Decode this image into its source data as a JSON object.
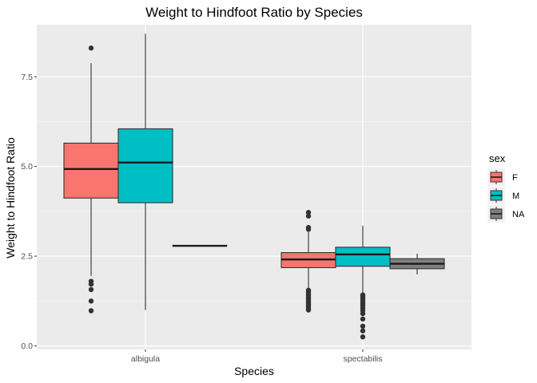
{
  "chart_data": {
    "type": "boxplot",
    "title": "Weight to Hindfoot Ratio by Species",
    "xlabel": "Species",
    "ylabel": "Weight to Hindfoot Ratio",
    "ylim": [
      -0.1,
      8.95
    ],
    "yticks": [
      0.0,
      2.5,
      5.0,
      7.5
    ],
    "ytick_labels": [
      "0.0",
      "2.5",
      "5.0",
      "7.5"
    ],
    "categories": [
      "albigula",
      "spectabilis"
    ],
    "legend": {
      "title": "sex",
      "position": "right",
      "entries": [
        {
          "label": "F",
          "color": "#F8766D"
        },
        {
          "label": "M",
          "color": "#00BFC4"
        },
        {
          "label": "NA",
          "color": "#7F7F7F"
        }
      ]
    },
    "boxes": [
      {
        "category": "albigula",
        "group": "F",
        "color": "#F8766D",
        "q1": 4.12,
        "median": 4.93,
        "q3": 5.65,
        "whisker_low": 1.95,
        "whisker_high": 7.88,
        "outliers": [
          8.3,
          1.8,
          1.72,
          1.57,
          1.25,
          0.98
        ]
      },
      {
        "category": "albigula",
        "group": "M",
        "color": "#00BFC4",
        "q1": 3.99,
        "median": 5.11,
        "q3": 6.05,
        "whisker_low": 1.0,
        "whisker_high": 8.7,
        "outliers": []
      },
      {
        "category": "albigula",
        "group": "NA",
        "color": "#7F7F7F",
        "q1": 2.79,
        "median": 2.79,
        "q3": 2.79,
        "whisker_low": 2.79,
        "whisker_high": 2.79,
        "outliers": []
      },
      {
        "category": "spectabilis",
        "group": "F",
        "color": "#F8766D",
        "q1": 2.18,
        "median": 2.41,
        "q3": 2.6,
        "whisker_low": 1.59,
        "whisker_high": 3.19,
        "outliers": [
          3.72,
          3.62,
          3.3,
          3.25,
          1.55,
          1.5,
          1.45,
          1.4,
          1.35,
          1.3,
          1.25,
          1.2,
          1.15,
          1.1,
          1.05,
          1.0
        ]
      },
      {
        "category": "spectabilis",
        "group": "M",
        "color": "#00BFC4",
        "q1": 2.22,
        "median": 2.55,
        "q3": 2.75,
        "whisker_low": 1.47,
        "whisker_high": 3.35,
        "outliers": [
          1.42,
          1.38,
          1.33,
          1.28,
          1.22,
          1.17,
          1.12,
          1.05,
          0.98,
          0.9,
          0.75,
          0.55,
          0.42,
          0.25
        ]
      },
      {
        "category": "spectabilis",
        "group": "NA",
        "color": "#7F7F7F",
        "q1": 2.15,
        "median": 2.29,
        "q3": 2.43,
        "whisker_low": 1.99,
        "whisker_high": 2.57,
        "outliers": []
      }
    ]
  }
}
